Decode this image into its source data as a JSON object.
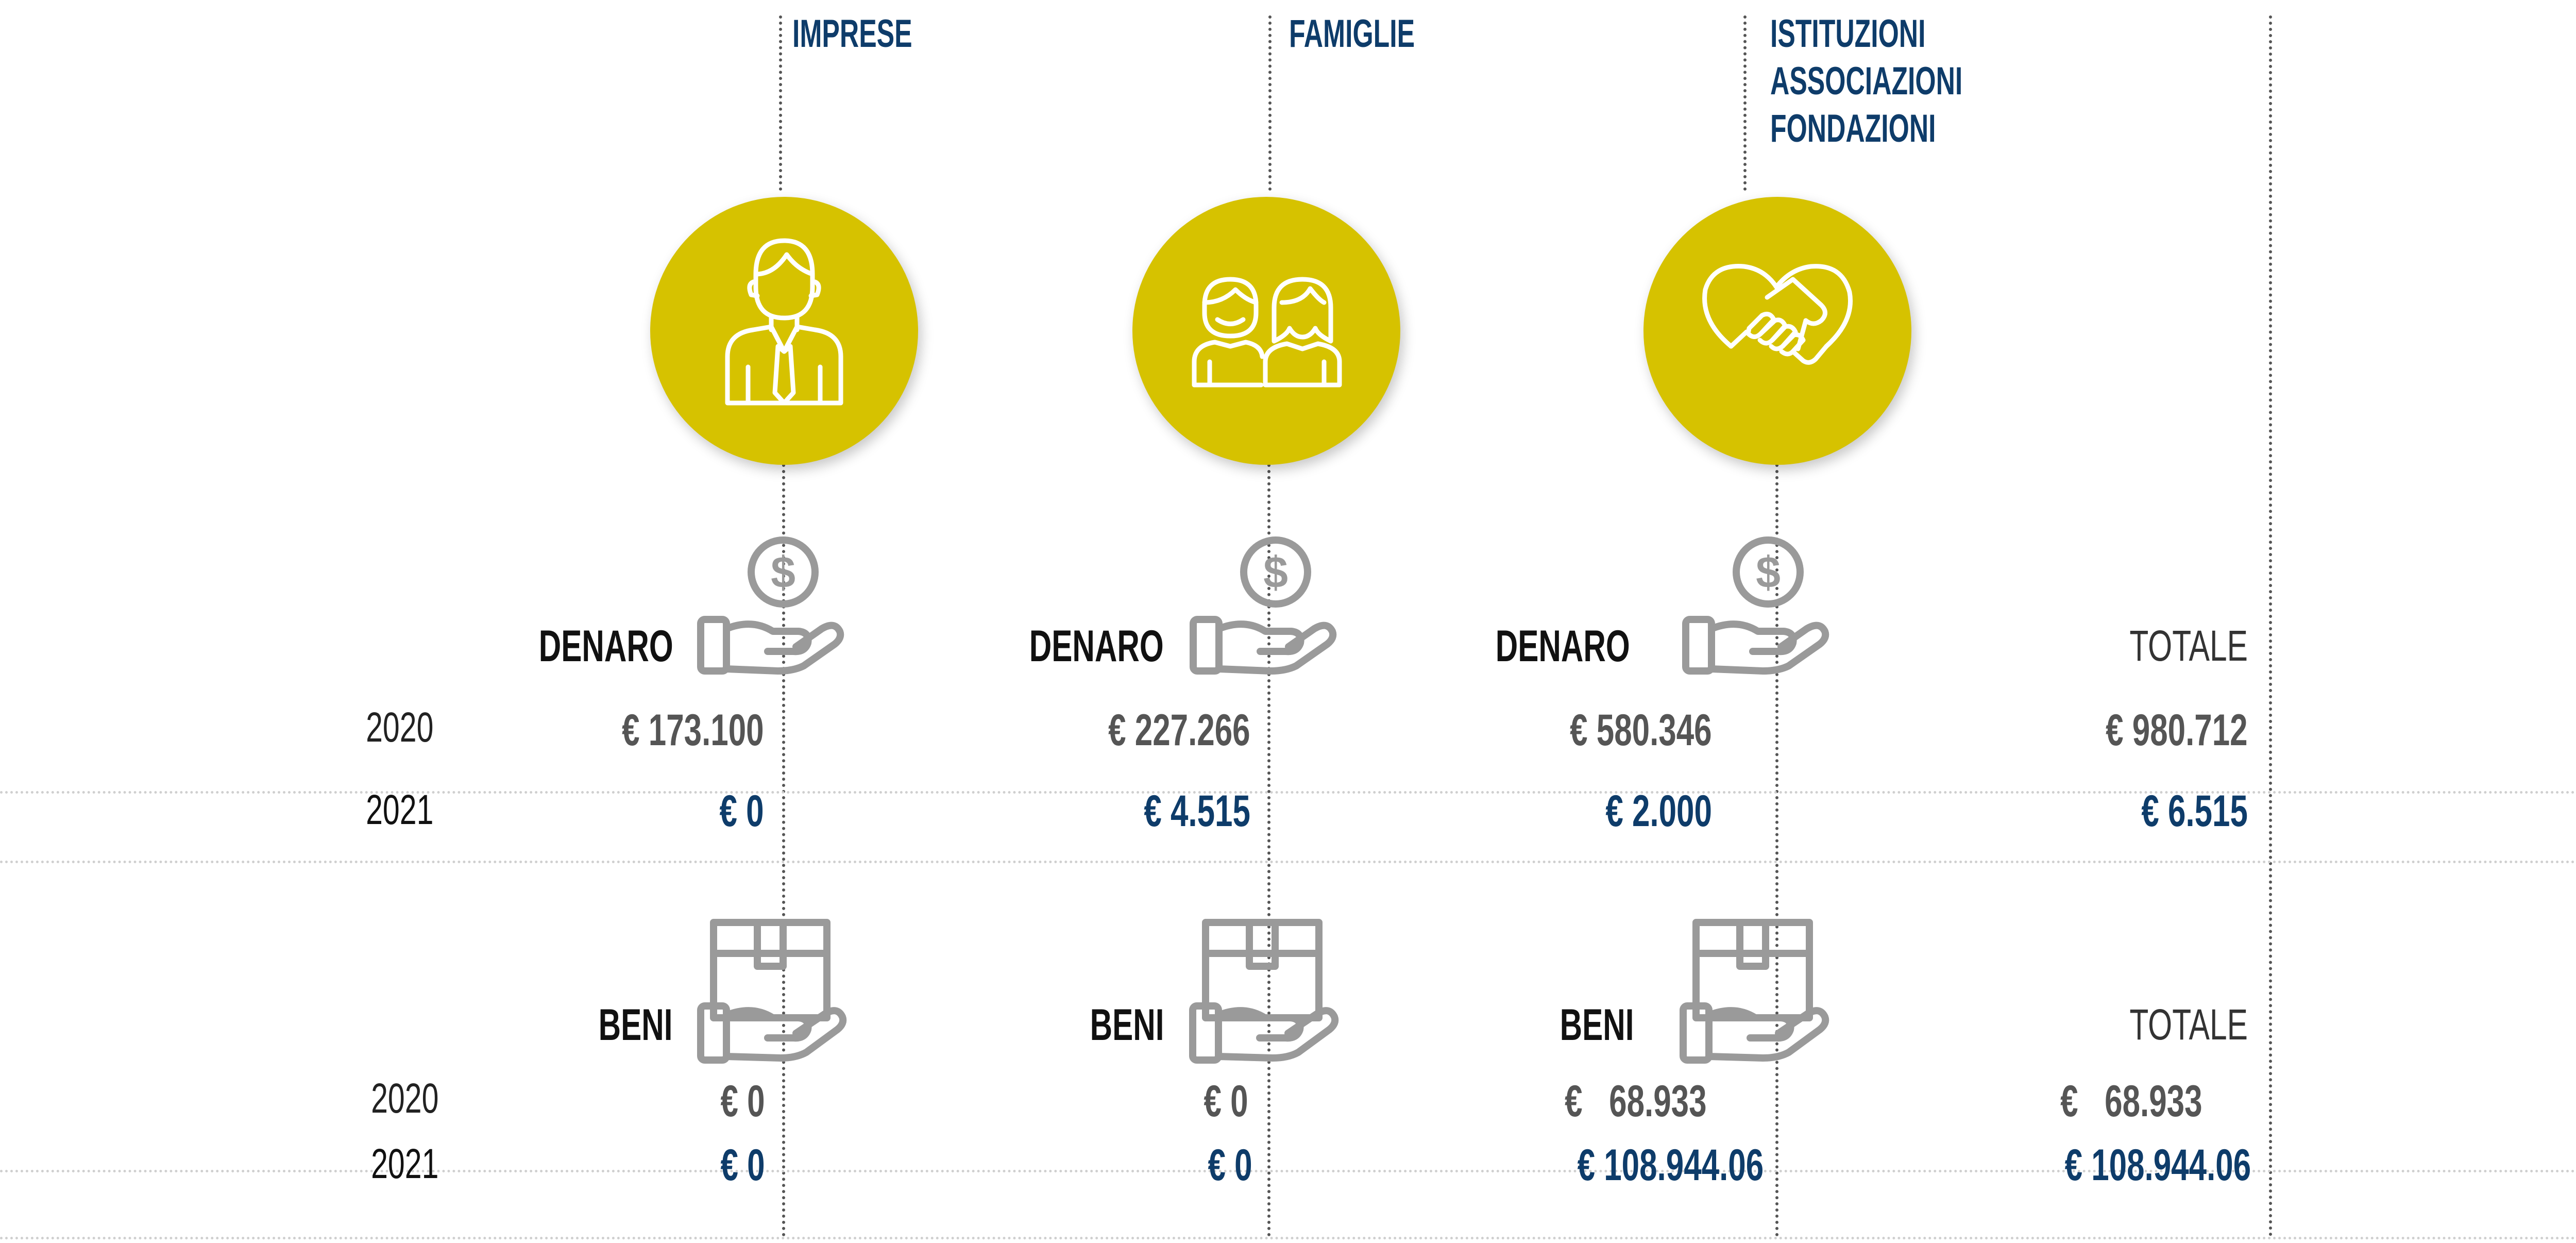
{
  "colors": {
    "accent": "#d6c200",
    "navy": "#0e3c6a",
    "gray": "#555555",
    "icon_gray": "#9a9a9a"
  },
  "categories": [
    {
      "title_lines": [
        "IMPRESE"
      ],
      "icon": "businessman-icon"
    },
    {
      "title_lines": [
        "FAMIGLIE"
      ],
      "icon": "family-icon"
    },
    {
      "title_lines": [
        "ISTITUZIONI",
        "ASSOCIAZIONI",
        "FONDAZIONI"
      ],
      "icon": "heart-handshake-icon"
    }
  ],
  "denaro": {
    "label": "DENARO",
    "icon": "hand-coin-icon",
    "total_label": "TOTALE",
    "year_2020": "2020",
    "year_2021": "2021",
    "values_2020": [
      "€ 173.100",
      "€ 227.266",
      "€ 580.346"
    ],
    "values_2021": [
      "€ 0",
      "€ 4.515",
      "€ 2.000"
    ],
    "total_2020": "€ 980.712",
    "total_2021": "€ 6.515"
  },
  "beni": {
    "label": "BENI",
    "icon": "hand-box-icon",
    "total_label": "TOTALE",
    "year_2020": "2020",
    "year_2021": "2021",
    "values_2020": [
      "€ 0",
      "€ 0",
      "€   68.933"
    ],
    "values_2021": [
      "€ 0",
      "€ 0",
      "€ 108.944.06"
    ],
    "total_2020": "€   68.933",
    "total_2021": "€ 108.944.06"
  }
}
